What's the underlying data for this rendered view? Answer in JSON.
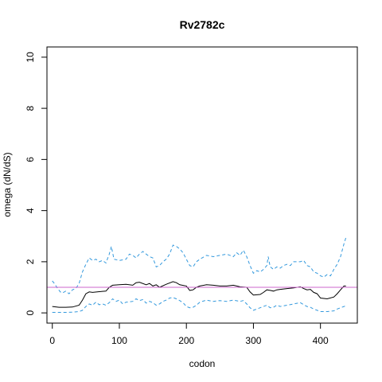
{
  "chart_data": {
    "type": "line",
    "title": "Rv2782c",
    "xlabel": "codon",
    "ylabel": "omega (dN/dS)",
    "xlim": [
      -8,
      455
    ],
    "ylim": [
      -0.4,
      10.4
    ],
    "xticks": [
      0,
      100,
      200,
      300,
      400
    ],
    "yticks": [
      0,
      2,
      4,
      6,
      8,
      10
    ],
    "reference_line": {
      "y": 1,
      "color": "#cc66cc"
    },
    "series": [
      {
        "style": "solid",
        "color": "#000000",
        "points": [
          [
            0,
            0.25
          ],
          [
            10,
            0.22
          ],
          [
            20,
            0.22
          ],
          [
            30,
            0.23
          ],
          [
            40,
            0.3
          ],
          [
            45,
            0.5
          ],
          [
            50,
            0.75
          ],
          [
            55,
            0.82
          ],
          [
            60,
            0.8
          ],
          [
            70,
            0.83
          ],
          [
            80,
            0.85
          ],
          [
            85,
            1.0
          ],
          [
            90,
            1.08
          ],
          [
            100,
            1.1
          ],
          [
            110,
            1.12
          ],
          [
            120,
            1.08
          ],
          [
            125,
            1.18
          ],
          [
            130,
            1.2
          ],
          [
            140,
            1.1
          ],
          [
            145,
            1.15
          ],
          [
            150,
            1.05
          ],
          [
            155,
            1.1
          ],
          [
            160,
            1.0
          ],
          [
            170,
            1.12
          ],
          [
            180,
            1.22
          ],
          [
            185,
            1.18
          ],
          [
            190,
            1.1
          ],
          [
            200,
            1.05
          ],
          [
            205,
            0.88
          ],
          [
            210,
            0.9
          ],
          [
            215,
            1.0
          ],
          [
            220,
            1.05
          ],
          [
            230,
            1.1
          ],
          [
            240,
            1.08
          ],
          [
            250,
            1.05
          ],
          [
            260,
            1.05
          ],
          [
            270,
            1.08
          ],
          [
            280,
            1.02
          ],
          [
            290,
            1.0
          ],
          [
            295,
            0.82
          ],
          [
            300,
            0.7
          ],
          [
            310,
            0.72
          ],
          [
            315,
            0.8
          ],
          [
            320,
            0.9
          ],
          [
            325,
            0.88
          ],
          [
            330,
            0.85
          ],
          [
            335,
            0.9
          ],
          [
            340,
            0.92
          ],
          [
            350,
            0.95
          ],
          [
            360,
            0.98
          ],
          [
            370,
            1.02
          ],
          [
            375,
            0.95
          ],
          [
            380,
            0.9
          ],
          [
            385,
            0.92
          ],
          [
            390,
            0.8
          ],
          [
            395,
            0.75
          ],
          [
            400,
            0.58
          ],
          [
            410,
            0.55
          ],
          [
            420,
            0.62
          ],
          [
            425,
            0.75
          ],
          [
            430,
            0.9
          ],
          [
            435,
            1.05
          ],
          [
            438,
            1.05
          ]
        ]
      },
      {
        "style": "dashed",
        "color": "#3399dd",
        "points": [
          [
            0,
            1.25
          ],
          [
            3,
            1.15
          ],
          [
            8,
            0.95
          ],
          [
            12,
            0.82
          ],
          [
            15,
            0.78
          ],
          [
            20,
            0.85
          ],
          [
            25,
            0.75
          ],
          [
            30,
            0.9
          ],
          [
            35,
            0.95
          ],
          [
            40,
            1.15
          ],
          [
            45,
            1.6
          ],
          [
            50,
            1.9
          ],
          [
            55,
            2.15
          ],
          [
            60,
            2.05
          ],
          [
            65,
            2.1
          ],
          [
            70,
            2.0
          ],
          [
            75,
            2.05
          ],
          [
            80,
            1.95
          ],
          [
            85,
            2.3
          ],
          [
            88,
            2.6
          ],
          [
            92,
            2.1
          ],
          [
            100,
            2.05
          ],
          [
            110,
            2.1
          ],
          [
            115,
            2.3
          ],
          [
            120,
            2.25
          ],
          [
            125,
            2.15
          ],
          [
            130,
            2.3
          ],
          [
            135,
            2.4
          ],
          [
            140,
            2.3
          ],
          [
            145,
            2.2
          ],
          [
            150,
            2.15
          ],
          [
            155,
            1.8
          ],
          [
            160,
            1.85
          ],
          [
            165,
            2.0
          ],
          [
            170,
            2.1
          ],
          [
            175,
            2.3
          ],
          [
            180,
            2.65
          ],
          [
            185,
            2.6
          ],
          [
            190,
            2.5
          ],
          [
            195,
            2.35
          ],
          [
            200,
            2.1
          ],
          [
            205,
            1.85
          ],
          [
            210,
            1.8
          ],
          [
            215,
            2.0
          ],
          [
            220,
            2.1
          ],
          [
            230,
            2.25
          ],
          [
            240,
            2.2
          ],
          [
            250,
            2.25
          ],
          [
            260,
            2.3
          ],
          [
            270,
            2.2
          ],
          [
            275,
            2.35
          ],
          [
            280,
            2.25
          ],
          [
            285,
            2.45
          ],
          [
            290,
            2.2
          ],
          [
            295,
            1.85
          ],
          [
            300,
            1.55
          ],
          [
            305,
            1.65
          ],
          [
            310,
            1.6
          ],
          [
            315,
            1.7
          ],
          [
            320,
            1.85
          ],
          [
            322,
            2.2
          ],
          [
            325,
            1.8
          ],
          [
            330,
            1.7
          ],
          [
            335,
            1.8
          ],
          [
            340,
            1.75
          ],
          [
            345,
            1.85
          ],
          [
            350,
            1.9
          ],
          [
            355,
            1.85
          ],
          [
            360,
            2.0
          ],
          [
            370,
            2.0
          ],
          [
            375,
            2.05
          ],
          [
            380,
            1.85
          ],
          [
            385,
            1.8
          ],
          [
            390,
            1.6
          ],
          [
            395,
            1.55
          ],
          [
            400,
            1.45
          ],
          [
            405,
            1.4
          ],
          [
            410,
            1.5
          ],
          [
            415,
            1.45
          ],
          [
            420,
            1.7
          ],
          [
            425,
            1.9
          ],
          [
            430,
            2.2
          ],
          [
            435,
            2.7
          ],
          [
            438,
            2.95
          ]
        ]
      },
      {
        "style": "dashed",
        "color": "#3399dd",
        "points": [
          [
            0,
            0.02
          ],
          [
            10,
            0.02
          ],
          [
            20,
            0.02
          ],
          [
            30,
            0.03
          ],
          [
            40,
            0.05
          ],
          [
            45,
            0.1
          ],
          [
            50,
            0.25
          ],
          [
            55,
            0.35
          ],
          [
            60,
            0.3
          ],
          [
            65,
            0.42
          ],
          [
            70,
            0.32
          ],
          [
            75,
            0.35
          ],
          [
            80,
            0.3
          ],
          [
            85,
            0.4
          ],
          [
            90,
            0.55
          ],
          [
            95,
            0.45
          ],
          [
            100,
            0.5
          ],
          [
            105,
            0.35
          ],
          [
            110,
            0.42
          ],
          [
            120,
            0.45
          ],
          [
            125,
            0.55
          ],
          [
            130,
            0.48
          ],
          [
            135,
            0.52
          ],
          [
            140,
            0.38
          ],
          [
            145,
            0.45
          ],
          [
            150,
            0.4
          ],
          [
            155,
            0.3
          ],
          [
            160,
            0.35
          ],
          [
            165,
            0.45
          ],
          [
            170,
            0.5
          ],
          [
            175,
            0.58
          ],
          [
            180,
            0.6
          ],
          [
            185,
            0.55
          ],
          [
            190,
            0.48
          ],
          [
            195,
            0.4
          ],
          [
            200,
            0.25
          ],
          [
            205,
            0.2
          ],
          [
            210,
            0.22
          ],
          [
            215,
            0.3
          ],
          [
            220,
            0.42
          ],
          [
            230,
            0.5
          ],
          [
            240,
            0.45
          ],
          [
            250,
            0.48
          ],
          [
            260,
            0.45
          ],
          [
            270,
            0.5
          ],
          [
            280,
            0.45
          ],
          [
            285,
            0.48
          ],
          [
            290,
            0.35
          ],
          [
            295,
            0.2
          ],
          [
            300,
            0.1
          ],
          [
            305,
            0.15
          ],
          [
            310,
            0.2
          ],
          [
            315,
            0.25
          ],
          [
            320,
            0.3
          ],
          [
            325,
            0.2
          ],
          [
            330,
            0.22
          ],
          [
            335,
            0.3
          ],
          [
            340,
            0.25
          ],
          [
            350,
            0.3
          ],
          [
            360,
            0.35
          ],
          [
            370,
            0.4
          ],
          [
            375,
            0.32
          ],
          [
            380,
            0.25
          ],
          [
            385,
            0.22
          ],
          [
            390,
            0.15
          ],
          [
            395,
            0.1
          ],
          [
            400,
            0.05
          ],
          [
            410,
            0.05
          ],
          [
            420,
            0.08
          ],
          [
            425,
            0.15
          ],
          [
            430,
            0.2
          ],
          [
            435,
            0.25
          ],
          [
            438,
            0.28
          ]
        ]
      }
    ]
  }
}
